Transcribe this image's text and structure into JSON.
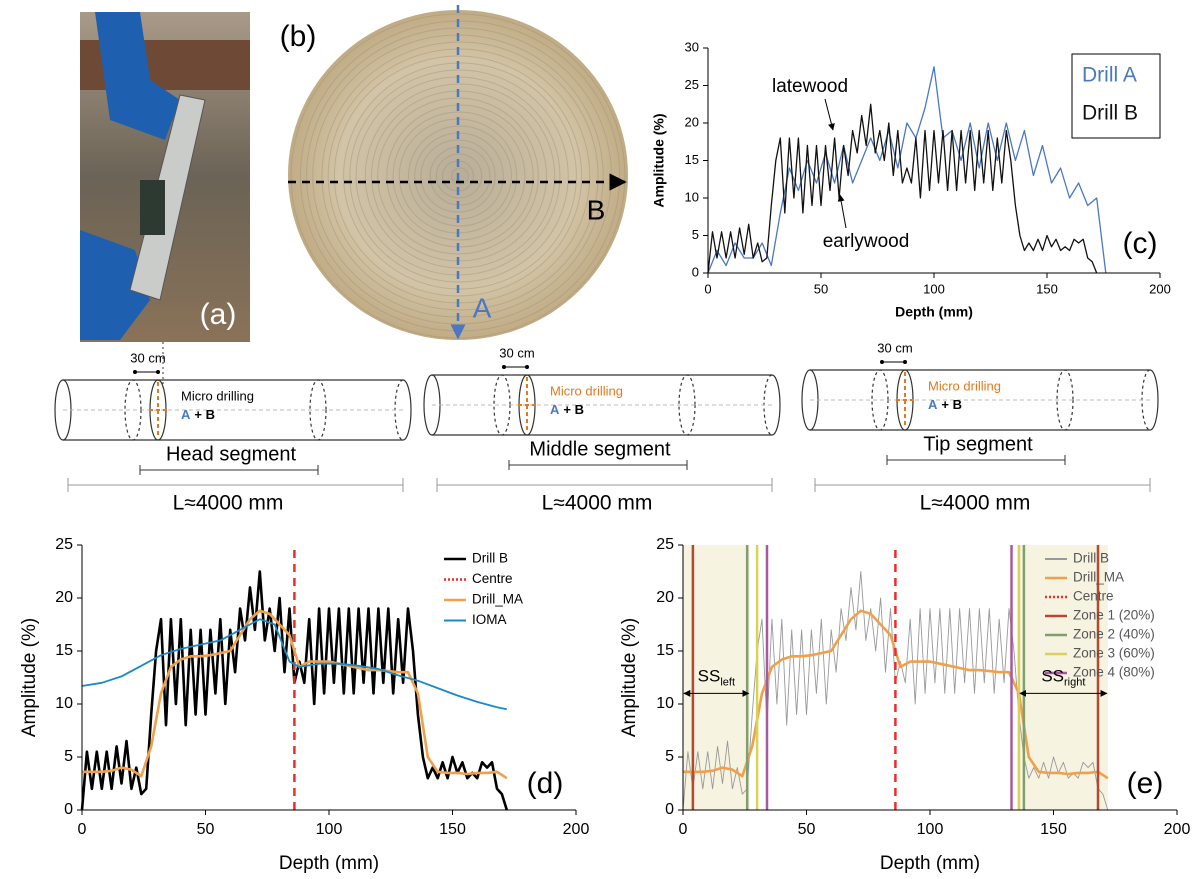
{
  "figure": {
    "photo_label": "(a)",
    "disc_label": "(b)",
    "disc_axes": [
      "A",
      "B"
    ],
    "segments": [
      {
        "offset": "30 cm",
        "method": "Micro drilling",
        "drills": [
          "A",
          "+ B"
        ],
        "name": "Head segment",
        "length": "L≈4000 mm"
      },
      {
        "offset": "30 cm",
        "method": "Micro drilling",
        "drills": [
          "A",
          "+ B"
        ],
        "name": "Middle segment",
        "length": "L≈4000 mm"
      },
      {
        "offset": "30 cm",
        "method": "Micro drilling",
        "drills": [
          "A",
          "+ B"
        ],
        "name": "Tip segment",
        "length": "L≈4000 mm"
      }
    ]
  },
  "chart_data": [
    {
      "type": "line",
      "panel_label": "(c)",
      "x_label": "Depth (mm)",
      "y_label": "Amplitude (%)",
      "xlim": [
        0,
        200
      ],
      "ylim": [
        0,
        30
      ],
      "xticks": [
        0,
        50,
        100,
        150,
        200
      ],
      "yticks": [
        0,
        5,
        10,
        15,
        20,
        25,
        30
      ],
      "legend": "upper right",
      "legend_style": "text",
      "legend_frame": true,
      "annotations": [
        "latewood",
        "earlywood"
      ],
      "series": [
        {
          "name": "Drill A",
          "color": "#4a78c2",
          "width": 1.3,
          "x": [
            0,
            4,
            8,
            12,
            16,
            20,
            24,
            28,
            32,
            36,
            40,
            44,
            48,
            52,
            56,
            60,
            64,
            68,
            72,
            76,
            80,
            84,
            88,
            92,
            96,
            100,
            104,
            108,
            112,
            116,
            120,
            124,
            128,
            132,
            136,
            140,
            144,
            148,
            152,
            156,
            160,
            164,
            168,
            172,
            176
          ],
          "values": [
            0,
            3,
            1,
            4,
            2,
            2,
            4,
            1,
            8,
            14,
            11,
            15,
            12,
            16,
            12,
            17,
            12,
            15,
            18,
            15,
            19,
            14,
            20,
            18,
            22,
            27.5,
            18,
            19,
            15,
            20,
            14,
            20,
            15,
            20,
            15,
            19,
            13,
            17,
            12,
            14,
            10,
            12,
            9,
            10,
            0
          ]
        },
        {
          "name": "Drill B",
          "color": "#111111",
          "width": 1.3,
          "x": [
            0,
            2,
            4,
            6,
            8,
            10,
            12,
            14,
            16,
            18,
            20,
            22,
            24,
            26,
            28,
            30,
            32,
            34,
            36,
            38,
            40,
            42,
            44,
            46,
            48,
            50,
            52,
            54,
            56,
            58,
            60,
            62,
            64,
            66,
            68,
            70,
            72,
            74,
            76,
            78,
            80,
            82,
            84,
            86,
            88,
            90,
            92,
            94,
            96,
            98,
            100,
            102,
            104,
            106,
            108,
            110,
            112,
            114,
            116,
            118,
            120,
            122,
            124,
            126,
            128,
            130,
            132,
            134,
            136,
            138,
            140,
            142,
            144,
            146,
            148,
            150,
            152,
            154,
            156,
            158,
            160,
            162,
            164,
            166,
            168,
            170,
            172
          ],
          "values": [
            0,
            5.5,
            2,
            5.5,
            2,
            5.5,
            2,
            6,
            2.5,
            6.5,
            2,
            4,
            1.5,
            2,
            9,
            15,
            18,
            8,
            18,
            10,
            18,
            8,
            17,
            9,
            17,
            9,
            17,
            11,
            18,
            10,
            17,
            13,
            19,
            16,
            21,
            17,
            22.5,
            16,
            19,
            15,
            20,
            13,
            19,
            12,
            14,
            12,
            18,
            10,
            19,
            11,
            19,
            12,
            19,
            11,
            19,
            11,
            19,
            12,
            19,
            11,
            19,
            12,
            19,
            11,
            18,
            12,
            19,
            15,
            9,
            5,
            3,
            4,
            3,
            4.5,
            3,
            5,
            3.5,
            4.5,
            3,
            3.5,
            3,
            4.5,
            4,
            4.5,
            2,
            1.5,
            0
          ]
        }
      ]
    },
    {
      "type": "line",
      "panel_label": "(d)",
      "x_label": "Depth (mm)",
      "y_label": "Amplitude (%)",
      "xlim": [
        0,
        200
      ],
      "ylim": [
        0,
        25
      ],
      "xticks": [
        0,
        50,
        100,
        150,
        200
      ],
      "yticks": [
        0,
        5,
        10,
        15,
        20,
        25
      ],
      "legend": "upper right",
      "legend_style": "lines",
      "legend_frame": false,
      "series": [
        {
          "name": "Drill B",
          "color": "#000000",
          "width": 2.6,
          "x": [
            0,
            2,
            4,
            6,
            8,
            10,
            12,
            14,
            16,
            18,
            20,
            22,
            24,
            26,
            28,
            30,
            32,
            34,
            36,
            38,
            40,
            42,
            44,
            46,
            48,
            50,
            52,
            54,
            56,
            58,
            60,
            62,
            64,
            66,
            68,
            70,
            72,
            74,
            76,
            78,
            80,
            82,
            84,
            86,
            88,
            90,
            92,
            94,
            96,
            98,
            100,
            102,
            104,
            106,
            108,
            110,
            112,
            114,
            116,
            118,
            120,
            122,
            124,
            126,
            128,
            130,
            132,
            134,
            136,
            138,
            140,
            142,
            144,
            146,
            148,
            150,
            152,
            154,
            156,
            158,
            160,
            162,
            164,
            166,
            168,
            170,
            172
          ],
          "values": [
            0,
            5.5,
            2,
            5.5,
            2,
            5.5,
            2,
            6,
            2.5,
            6.5,
            2,
            4,
            1.5,
            2,
            9,
            15,
            18,
            8,
            18,
            10,
            18,
            8,
            17,
            9,
            17,
            9,
            17,
            11,
            18,
            10,
            17,
            13,
            19,
            16,
            21,
            17,
            22.5,
            16,
            19,
            15,
            20,
            13,
            19,
            12,
            14,
            12,
            18,
            10,
            19,
            11,
            19,
            12,
            19,
            11,
            19,
            11,
            19,
            12,
            19,
            11,
            19,
            12,
            19,
            11,
            18,
            12,
            19,
            15,
            9,
            5,
            3,
            4,
            3,
            4.5,
            3,
            5,
            3.5,
            4.5,
            3,
            3.5,
            3,
            4.5,
            4,
            4.5,
            2,
            1.5,
            0
          ]
        },
        {
          "name": "Centre",
          "color": "#e8302a",
          "width": 2.5,
          "dashed": true,
          "x": [
            86,
            86
          ],
          "values": [
            0,
            25
          ]
        },
        {
          "name": "Drill_MA",
          "color": "#f0a04b",
          "width": 2.6,
          "x": [
            0,
            4,
            8,
            12,
            16,
            20,
            24,
            28,
            32,
            36,
            40,
            44,
            48,
            52,
            56,
            60,
            64,
            68,
            72,
            76,
            80,
            84,
            88,
            92,
            96,
            100,
            104,
            108,
            112,
            116,
            120,
            124,
            128,
            132,
            136,
            140,
            144,
            148,
            152,
            156,
            160,
            164,
            168,
            172
          ],
          "values": [
            3.6,
            3.6,
            3.6,
            3.7,
            4,
            3.8,
            3.2,
            6,
            11,
            13.5,
            14.2,
            14.5,
            14.5,
            14.6,
            14.8,
            15,
            16.5,
            18,
            18.8,
            18.5,
            17.5,
            16.5,
            13.5,
            14,
            14,
            14,
            13.8,
            13.6,
            13.4,
            13.2,
            13.2,
            13.1,
            13,
            13,
            11,
            5,
            3.6,
            3.5,
            3.5,
            3.4,
            3.5,
            3.5,
            3.6,
            3
          ]
        },
        {
          "name": "IOMA",
          "color": "#1b8ac4",
          "width": 1.8,
          "x": [
            0,
            8,
            16,
            24,
            32,
            40,
            48,
            56,
            64,
            72,
            78,
            84,
            88,
            96,
            104,
            112,
            120,
            128,
            136,
            144,
            152,
            160,
            168,
            172
          ],
          "values": [
            11.7,
            12,
            12.6,
            13.6,
            14.6,
            15.2,
            15.6,
            16,
            17,
            18,
            17.5,
            14,
            13.5,
            13.8,
            13.8,
            13.6,
            13.3,
            12.7,
            12.2,
            11.5,
            10.8,
            10.2,
            9.7,
            9.5
          ]
        }
      ]
    },
    {
      "type": "line",
      "panel_label": "(e)",
      "x_label": "Depth (mm)",
      "y_label": "Amplitude (%)",
      "xlim": [
        0,
        200
      ],
      "ylim": [
        0,
        25
      ],
      "xticks": [
        0,
        50,
        100,
        150,
        200
      ],
      "yticks": [
        0,
        5,
        10,
        15,
        20,
        25
      ],
      "legend": "upper right",
      "legend_style": "lines",
      "legend_frame": false,
      "shaded_spans": [
        [
          0,
          27
        ],
        [
          136,
          172
        ]
      ],
      "shade_color": "#f7f3e1",
      "span_labels": [
        {
          "text": "SS",
          "sub": "left"
        },
        {
          "text": "SS",
          "sub": "right"
        }
      ],
      "series": [
        {
          "name": "Drill B",
          "color": "#999999",
          "width": 0.9,
          "x": [
            0,
            2,
            4,
            6,
            8,
            10,
            12,
            14,
            16,
            18,
            20,
            22,
            24,
            26,
            28,
            30,
            32,
            34,
            36,
            38,
            40,
            42,
            44,
            46,
            48,
            50,
            52,
            54,
            56,
            58,
            60,
            62,
            64,
            66,
            68,
            70,
            72,
            74,
            76,
            78,
            80,
            82,
            84,
            86,
            88,
            90,
            92,
            94,
            96,
            98,
            100,
            102,
            104,
            106,
            108,
            110,
            112,
            114,
            116,
            118,
            120,
            122,
            124,
            126,
            128,
            130,
            132,
            134,
            136,
            138,
            140,
            142,
            144,
            146,
            148,
            150,
            152,
            154,
            156,
            158,
            160,
            162,
            164,
            166,
            168,
            170,
            172
          ],
          "values": [
            0,
            5.5,
            2,
            5.5,
            2,
            5.5,
            2,
            6,
            2.5,
            6.5,
            2,
            4,
            1.5,
            2,
            9,
            15,
            18,
            8,
            18,
            10,
            18,
            8,
            17,
            9,
            17,
            9,
            17,
            11,
            18,
            10,
            17,
            13,
            19,
            16,
            21,
            17,
            22.5,
            16,
            19,
            15,
            20,
            13,
            19,
            12,
            14,
            12,
            18,
            10,
            19,
            11,
            19,
            12,
            19,
            11,
            19,
            11,
            19,
            12,
            19,
            11,
            19,
            12,
            19,
            11,
            18,
            12,
            19,
            15,
            9,
            5,
            3,
            4,
            3,
            4.5,
            3,
            5,
            3.5,
            4.5,
            3,
            3.5,
            3,
            4.5,
            4,
            4.5,
            2,
            1.5,
            0
          ]
        },
        {
          "name": "Drill_MA",
          "color": "#f0a04b",
          "width": 2.6,
          "x": [
            0,
            4,
            8,
            12,
            16,
            20,
            24,
            28,
            32,
            36,
            40,
            44,
            48,
            52,
            56,
            60,
            64,
            68,
            72,
            76,
            80,
            84,
            88,
            92,
            96,
            100,
            104,
            108,
            112,
            116,
            120,
            124,
            128,
            132,
            136,
            140,
            144,
            148,
            152,
            156,
            160,
            164,
            168,
            172
          ],
          "values": [
            3.6,
            3.6,
            3.6,
            3.7,
            4,
            3.8,
            3.2,
            6,
            11,
            13.5,
            14.2,
            14.5,
            14.5,
            14.6,
            14.8,
            15,
            16.5,
            18,
            18.8,
            18.5,
            17.5,
            16.5,
            13.5,
            14,
            14,
            14,
            13.8,
            13.6,
            13.4,
            13.2,
            13.2,
            13.1,
            13,
            13,
            11,
            5,
            3.6,
            3.5,
            3.5,
            3.4,
            3.5,
            3.5,
            3.6,
            3
          ]
        },
        {
          "name": "Centre",
          "color": "#e8302a",
          "width": 2.5,
          "dashed": true,
          "x": [
            86,
            86
          ],
          "values": [
            0,
            25
          ]
        },
        {
          "name": "Zone 1 (20%)",
          "color": "#b34a2f",
          "width": 2.5,
          "x": [
            4,
            4,
            null,
            168,
            168
          ],
          "values": [
            0,
            25,
            null,
            0,
            25
          ]
        },
        {
          "name": "Zone 2 (40%)",
          "color": "#7f9f6e",
          "width": 2.5,
          "x": [
            26,
            26,
            null,
            138,
            138
          ],
          "values": [
            0,
            25,
            null,
            0,
            25
          ]
        },
        {
          "name": "Zone 3 (60%)",
          "color": "#d9d354",
          "width": 2.5,
          "x": [
            30,
            30,
            null,
            136,
            136
          ],
          "values": [
            0,
            25,
            null,
            0,
            25
          ]
        },
        {
          "name": "Zone 4 (80%)",
          "color": "#a65a9e",
          "width": 2.5,
          "x": [
            34,
            34,
            null,
            133,
            133
          ],
          "values": [
            0,
            25,
            null,
            0,
            25
          ]
        }
      ]
    }
  ]
}
